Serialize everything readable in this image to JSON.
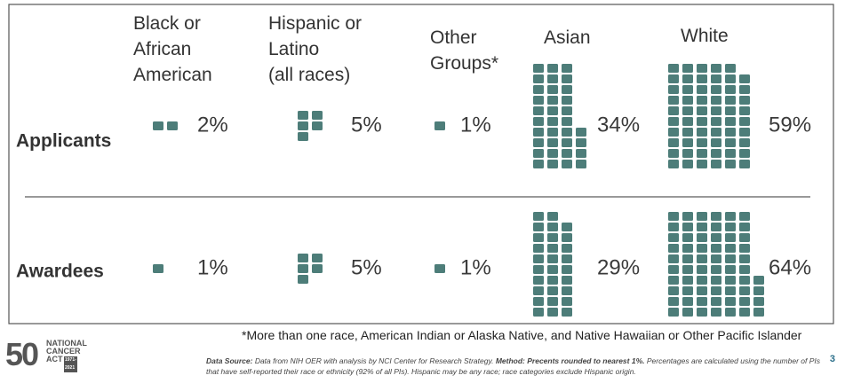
{
  "chart_data": {
    "type": "waffle",
    "categories": [
      "Black or\nAfrican\nAmerican",
      "Hispanic or\nLatino\n(all races)",
      "Other\nGroups*",
      "Asian",
      "White"
    ],
    "series": [
      {
        "name": "Applicants",
        "values": [
          2,
          5,
          1,
          34,
          59
        ],
        "value_labels": [
          "2%",
          "5%",
          "1%",
          "34%",
          "59%"
        ]
      },
      {
        "name": "Awardees",
        "values": [
          1,
          5,
          1,
          29,
          64
        ],
        "value_labels": [
          "1%",
          "5%",
          "1%",
          "29%",
          "64%"
        ]
      }
    ],
    "color": "#4d7d79",
    "footnote": "*More than one race, American Indian or Alaska Native, and Native Hawaiian or Other Pacific Islander"
  },
  "source": {
    "label": "Data Source:",
    "text": "Data from NIH OER with analysis by NCI Center for Research Strategy.",
    "method_label": "Method: Precents rounded to nearest 1%.",
    "text2": "Percentages are calculated using the number of PIs that have self-reported their race or ethnicity (92% of all PIs). Hispanic may be any race; race categories exclude Hispanic origin."
  },
  "logo": {
    "number": "50",
    "line1": "NATIONAL",
    "line2": "CANCER",
    "line3": "ACT",
    "years": "1971-2021"
  },
  "page_number": "3"
}
